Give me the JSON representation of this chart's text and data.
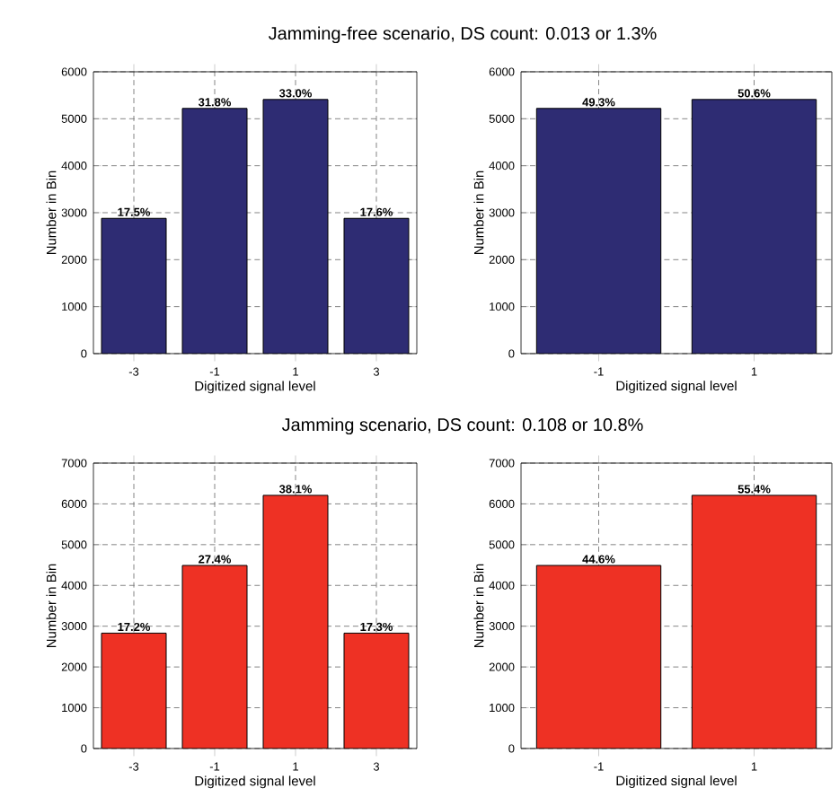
{
  "chart_data": [
    {
      "type": "bar",
      "title": "Jamming-free scenario, DS count: 0.013 or 1.3%",
      "categories": [
        "-3",
        "-1",
        "1",
        "3"
      ],
      "values": [
        2880,
        5220,
        5410,
        2880
      ],
      "color": "#2e2c73",
      "ylim": [
        0,
        6000
      ],
      "yticks": [
        0,
        1000,
        2000,
        3000,
        4000,
        5000,
        6000
      ],
      "xlabel": "Digitized signal level",
      "ylabel": "Number in Bin",
      "grid": true,
      "annotations": [
        {
          "text": "17.5%",
          "x": "-3",
          "y": 2880
        },
        {
          "text": "31.8%",
          "x": "-1",
          "y": 5220
        },
        {
          "text": "33.0%",
          "x": "1",
          "y": 5410
        },
        {
          "text": "17.6%",
          "x": "3",
          "y": 2880
        }
      ]
    },
    {
      "type": "bar",
      "categories": [
        "-1",
        "1"
      ],
      "values": [
        5220,
        5410
      ],
      "color": "#2e2c73",
      "ylim": [
        0,
        6000
      ],
      "yticks": [
        0,
        1000,
        2000,
        3000,
        4000,
        5000,
        6000
      ],
      "xlabel": "Digitized signal level",
      "ylabel": "Number in Bin",
      "grid": true,
      "annotations": [
        {
          "text": "49.3%",
          "x": "-1",
          "y": 5220
        },
        {
          "text": "50.6%",
          "x": "1",
          "y": 5410
        }
      ]
    },
    {
      "type": "bar",
      "title": "Jamming scenario, DS count: 0.108 or 10.8%",
      "categories": [
        "-3",
        "-1",
        "1",
        "3"
      ],
      "values": [
        2830,
        4490,
        6210,
        2830
      ],
      "color": "#ee3124",
      "ylim": [
        0,
        7000
      ],
      "yticks": [
        0,
        1000,
        2000,
        3000,
        4000,
        5000,
        6000,
        7000
      ],
      "xlabel": "Digitized signal level",
      "ylabel": "Number in Bin",
      "grid": true,
      "annotations": [
        {
          "text": "17.2%",
          "x": "-3",
          "y": 2830
        },
        {
          "text": "27.4%",
          "x": "-1",
          "y": 4490
        },
        {
          "text": "38.1%",
          "x": "1",
          "y": 6210
        },
        {
          "text": "17.3%",
          "x": "3",
          "y": 2830
        }
      ]
    },
    {
      "type": "bar",
      "categories": [
        "-1",
        "1"
      ],
      "values": [
        4490,
        6210
      ],
      "color": "#ee3124",
      "ylim": [
        0,
        7000
      ],
      "yticks": [
        0,
        1000,
        2000,
        3000,
        4000,
        5000,
        6000,
        7000
      ],
      "xlabel": "Digitized signal level",
      "ylabel": "Number in Bin",
      "grid": true,
      "annotations": [
        {
          "text": "44.6%",
          "x": "-1",
          "y": 4490
        },
        {
          "text": "55.4%",
          "x": "1",
          "y": 6210
        }
      ]
    }
  ]
}
